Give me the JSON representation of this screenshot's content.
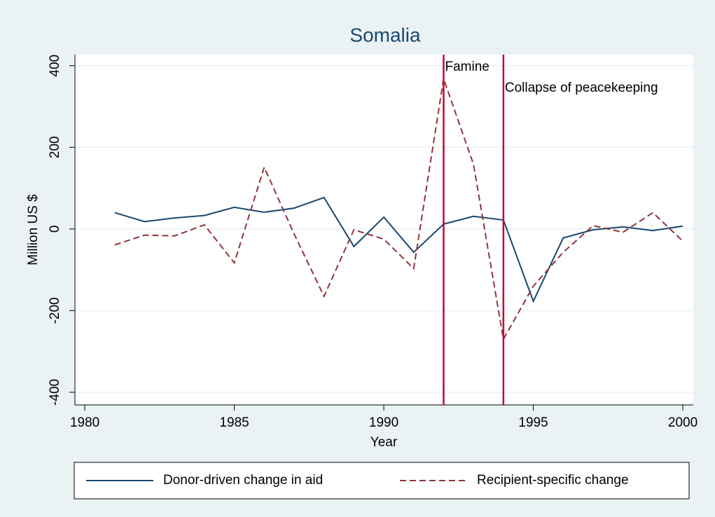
{
  "chart_data": {
    "type": "line",
    "title": "Somalia",
    "xlabel": "Year",
    "ylabel": "Million US $",
    "x": [
      1981,
      1982,
      1983,
      1984,
      1985,
      1986,
      1987,
      1988,
      1989,
      1990,
      1991,
      1992,
      1993,
      1994,
      1995,
      1996,
      1997,
      1998,
      1999,
      2000
    ],
    "series": [
      {
        "name": "Donor-driven change in aid",
        "color": "#1a476f",
        "dash": "solid",
        "values": [
          40,
          18,
          27,
          33,
          53,
          41,
          51,
          77,
          -43,
          29,
          -57,
          12,
          31,
          22,
          -177,
          -22,
          -2,
          5,
          -4,
          7
        ]
      },
      {
        "name": "Recipient-specific change",
        "color": "#90353b",
        "dash": "dashed",
        "values": [
          -39,
          -15,
          -17,
          10,
          -83,
          151,
          -12,
          -165,
          -2,
          -25,
          -97,
          368,
          158,
          -270,
          -140,
          -57,
          8,
          -8,
          40,
          -30
        ]
      }
    ],
    "annotations": [
      {
        "x": 1992,
        "text": "Famine",
        "color": "#c10534"
      },
      {
        "x": 1994,
        "text": "Collapse of peacekeeping",
        "color": "#c10534"
      }
    ],
    "xlim": [
      1979.67,
      2000.35
    ],
    "xticks": [
      1980,
      1985,
      1990,
      1995,
      2000
    ],
    "ylim": [
      -431,
      427
    ],
    "yticks": [
      -400,
      -200,
      0,
      200,
      400
    ],
    "grid": true,
    "legend": "bottom"
  }
}
